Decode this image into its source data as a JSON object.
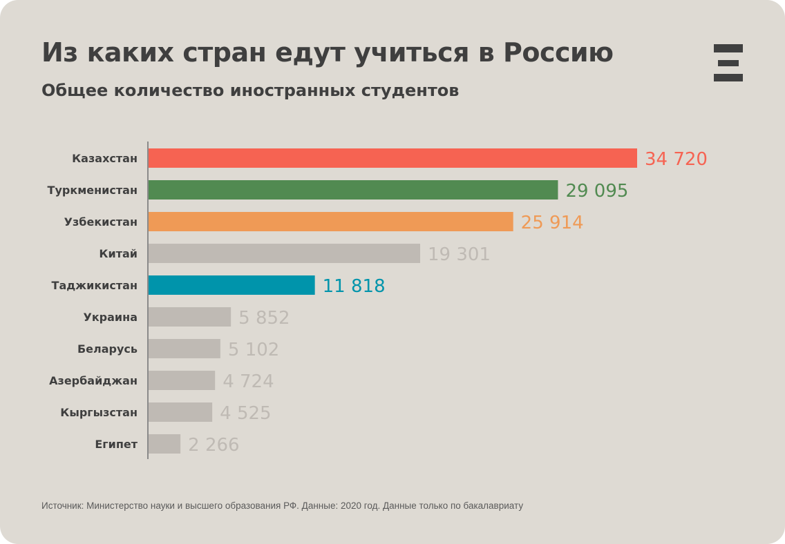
{
  "title": "Из каких стран едут учиться в Россию",
  "subtitle": "Общее количество иностранных студентов",
  "source": "Источник: Министерство науки и высшего образования РФ. Данные: 2020 год. Данные только по бакалавриату",
  "logo_icon": "three-bars-logo-icon",
  "chart_data": {
    "type": "bar",
    "orientation": "horizontal",
    "title": "Из каких стран едут учиться в Россию",
    "subtitle": "Общее количество иностранных студентов",
    "categories": [
      "Казахстан",
      "Туркменистан",
      "Узбекистан",
      "Китай",
      "Таджикистан",
      "Украина",
      "Беларусь",
      "Азербайджан",
      "Кыргызстан",
      "Египет"
    ],
    "values": [
      34720,
      29095,
      25914,
      19301,
      11818,
      5852,
      5102,
      4724,
      4525,
      2266
    ],
    "labels": [
      "34 720",
      "29 095",
      "25 914",
      "19 301",
      "11 818",
      "5 852",
      "5 102",
      "4 724",
      "4 525",
      "2 266"
    ],
    "colors": [
      "#f66352",
      "#518a51",
      "#ef9a56",
      "#bfbab4",
      "#0094ab",
      "#bfbab4",
      "#bfbab4",
      "#bfbab4",
      "#bfbab4",
      "#bfbab4"
    ],
    "xlim": [
      0,
      34720
    ],
    "grid": false,
    "legend": "none"
  }
}
